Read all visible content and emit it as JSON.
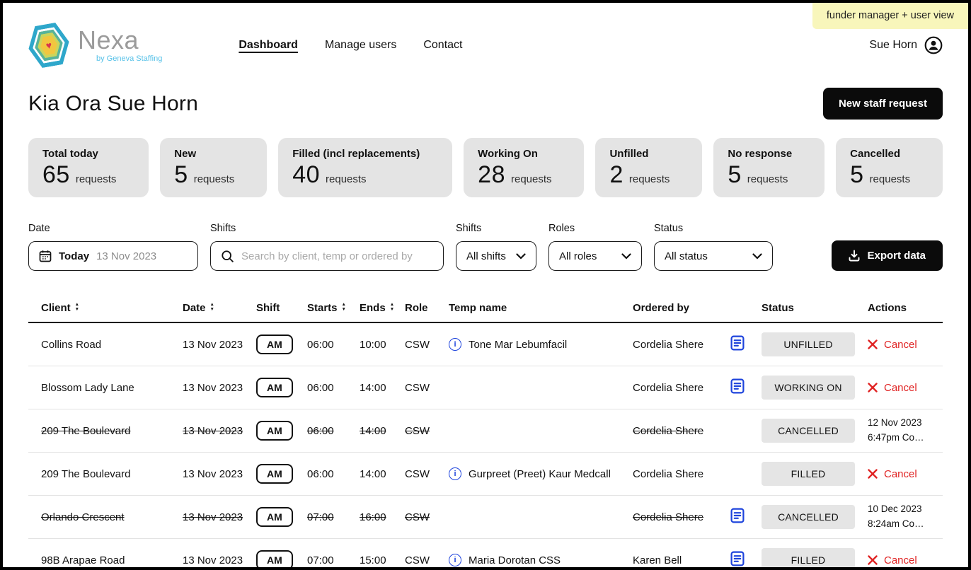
{
  "banner": {
    "label": "funder manager + user view"
  },
  "brand": {
    "name": "Nexa",
    "tagline": "by Geneva Staffing"
  },
  "nav": {
    "items": [
      {
        "label": "Dashboard",
        "active": true
      },
      {
        "label": "Manage users",
        "active": false
      },
      {
        "label": "Contact",
        "active": false
      }
    ],
    "user": "Sue Horn"
  },
  "page": {
    "greeting": "Kia Ora Sue Horn",
    "new_request_label": "New staff request"
  },
  "stats": [
    {
      "label": "Total today",
      "value": "65",
      "unit": "requests"
    },
    {
      "label": "New",
      "value": "5",
      "unit": "requests"
    },
    {
      "label": "Filled (incl replacements)",
      "value": "40",
      "unit": "requests"
    },
    {
      "label": "Working On",
      "value": "28",
      "unit": "requests"
    },
    {
      "label": "Unfilled",
      "value": "2",
      "unit": "requests"
    },
    {
      "label": "No response",
      "value": "5",
      "unit": "requests"
    },
    {
      "label": "Cancelled",
      "value": "5",
      "unit": "requests"
    }
  ],
  "filters": {
    "date": {
      "label": "Date",
      "button_label": "Today",
      "value": "13 Nov 2023"
    },
    "search": {
      "label": "Shifts",
      "placeholder": "Search by client, temp or ordered by"
    },
    "shifts": {
      "label": "Shifts",
      "value": "All shifts"
    },
    "roles": {
      "label": "Roles",
      "value": "All roles"
    },
    "status": {
      "label": "Status",
      "value": "All status"
    },
    "export_label": "Export data"
  },
  "table": {
    "columns": [
      {
        "label": "Client",
        "sortable": true
      },
      {
        "label": "Date",
        "sortable": true
      },
      {
        "label": "Shift",
        "sortable": false
      },
      {
        "label": "Starts",
        "sortable": true
      },
      {
        "label": "Ends",
        "sortable": true
      },
      {
        "label": "Role",
        "sortable": false
      },
      {
        "label": "Temp name",
        "sortable": false
      },
      {
        "label": "Ordered by",
        "sortable": false
      },
      {
        "label": "Status",
        "sortable": false
      },
      {
        "label": "Actions",
        "sortable": false
      }
    ],
    "rows": [
      {
        "client": "Collins Road",
        "date": "13 Nov 2023",
        "shift": "AM",
        "starts": "06:00",
        "ends": "10:00",
        "role": "CSW",
        "temp_name": "Tone Mar Lebumfacil",
        "temp_info": true,
        "ordered_by": "Cordelia Shere",
        "has_note": true,
        "status": "UNFILLED",
        "cancelled": false,
        "action": {
          "type": "cancel",
          "label": "Cancel"
        }
      },
      {
        "client": "Blossom Lady Lane",
        "date": "13 Nov 2023",
        "shift": "AM",
        "starts": "06:00",
        "ends": "14:00",
        "role": "CSW",
        "temp_name": "",
        "temp_info": false,
        "ordered_by": "Cordelia Shere",
        "has_note": true,
        "status": "WORKING ON",
        "cancelled": false,
        "action": {
          "type": "cancel",
          "label": "Cancel"
        }
      },
      {
        "client": "209 The Boulevard",
        "date": "13 Nov 2023",
        "shift": "AM",
        "starts": "06:00",
        "ends": "14:00",
        "role": "CSW",
        "temp_name": "",
        "temp_info": false,
        "ordered_by": "Cordelia Shere",
        "has_note": false,
        "status": "CANCELLED",
        "cancelled": true,
        "action": {
          "type": "timestamp",
          "line1": "12 Nov 2023",
          "line2": "6:47pm Co…"
        }
      },
      {
        "client": "209 The Boulevard",
        "date": "13 Nov 2023",
        "shift": "AM",
        "starts": "06:00",
        "ends": "14:00",
        "role": "CSW",
        "temp_name": "Gurpreet (Preet) Kaur Medcall",
        "temp_info": true,
        "ordered_by": "Cordelia Shere",
        "has_note": false,
        "status": "FILLED",
        "cancelled": false,
        "action": {
          "type": "cancel",
          "label": "Cancel"
        }
      },
      {
        "client": "Orlando Crescent",
        "date": "13 Nov 2023",
        "shift": "AM",
        "starts": "07:00",
        "ends": "16:00",
        "role": "CSW",
        "temp_name": "",
        "temp_info": false,
        "ordered_by": "Cordelia Shere",
        "has_note": true,
        "status": "CANCELLED",
        "cancelled": true,
        "action": {
          "type": "timestamp",
          "line1": "10 Dec 2023",
          "line2": "8:24am Co…"
        }
      },
      {
        "client": "98B Arapae Road",
        "date": "13 Nov 2023",
        "shift": "AM",
        "starts": "07:00",
        "ends": "15:00",
        "role": "CSW",
        "temp_name": "Maria Dorotan CSS",
        "temp_info": true,
        "ordered_by": "Karen Bell",
        "has_note": true,
        "status": "FILLED",
        "cancelled": false,
        "action": {
          "type": "cancel",
          "label": "Cancel"
        }
      }
    ]
  },
  "icons": {
    "heart": "heart-icon",
    "avatar": "user-avatar-icon",
    "calendar": "calendar-icon",
    "search": "search-icon",
    "chevron_down": "chevron-down-icon",
    "download": "download-icon",
    "sort": "sort-icon",
    "info": "info-icon",
    "note": "note-document-icon",
    "cancel_x": "cancel-x-icon"
  },
  "colors": {
    "accent_blue": "#1d43dc",
    "cancel_red": "#e02424",
    "banner_yellow": "#f8f6bb",
    "card_gray": "#e4e4e4",
    "badge_gray": "#e5e5e5"
  }
}
